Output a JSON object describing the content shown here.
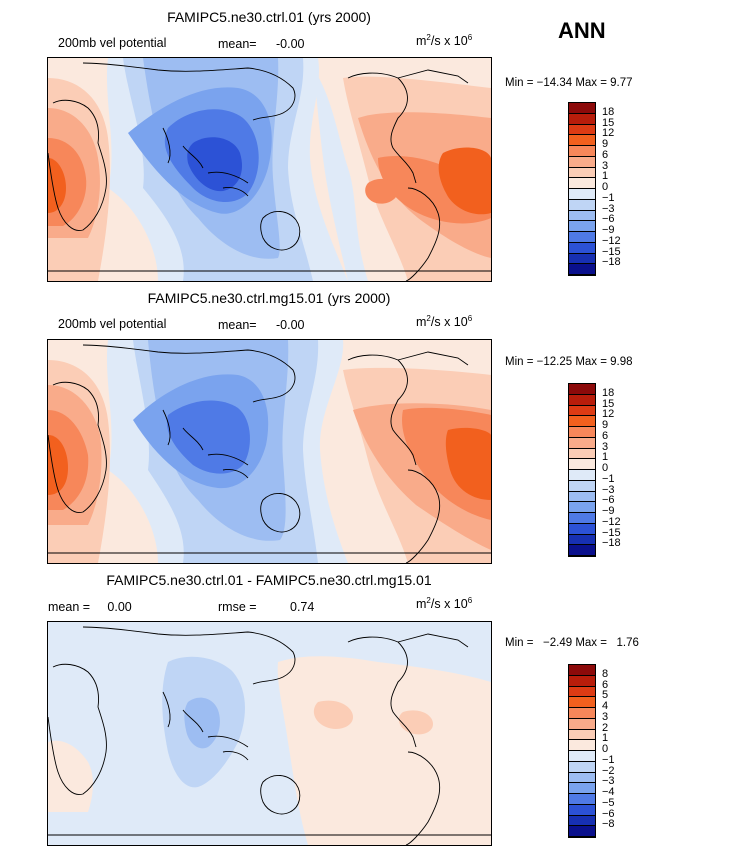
{
  "season_label": "ANN",
  "units_base": "m",
  "units_exp": "2",
  "units_mid": "/s x 10",
  "units_pow": "6",
  "panels": [
    {
      "title": "FAMIPC5.ne30.ctrl.01 (yrs 2000)",
      "left_label": "200mb vel potential",
      "mid_key": "mean=",
      "mid_val": "-0.00",
      "stats": "Min = −14.34 Max =   9.77",
      "levels": [
        "18",
        "15",
        "12",
        "9",
        "6",
        "3",
        "1",
        "0",
        "−1",
        "−3",
        "−6",
        "−9",
        "−12",
        "−15",
        "−18"
      ],
      "colors": [
        "#8c0a0a",
        "#b81d0b",
        "#dd3b14",
        "#f2601e",
        "#f7875a",
        "#f9ab8a",
        "#fbcdb6",
        "#fbe9de",
        "#dfeaf8",
        "#bfd5f5",
        "#9dbdf2",
        "#7aa3ee",
        "#4f7ae6",
        "#2c52d6",
        "#1730b2",
        "#0a108c"
      ]
    },
    {
      "title": "FAMIPC5.ne30.ctrl.mg15.01 (yrs 2000)",
      "left_label": "200mb vel potential",
      "mid_key": "mean=",
      "mid_val": "-0.00",
      "stats": "Min = −12.25 Max =   9.98",
      "levels": [
        "18",
        "15",
        "12",
        "9",
        "6",
        "3",
        "1",
        "0",
        "−1",
        "−3",
        "−6",
        "−9",
        "−12",
        "−15",
        "−18"
      ],
      "colors": [
        "#8c0a0a",
        "#b81d0b",
        "#dd3b14",
        "#f2601e",
        "#f7875a",
        "#f9ab8a",
        "#fbcdb6",
        "#fbe9de",
        "#dfeaf8",
        "#bfd5f5",
        "#9dbdf2",
        "#7aa3ee",
        "#4f7ae6",
        "#2c52d6",
        "#1730b2",
        "#0a108c"
      ]
    },
    {
      "title": "FAMIPC5.ne30.ctrl.01 - FAMIPC5.ne30.ctrl.mg15.01",
      "left_label": "mean =     0.00",
      "mid_key": "rmse =",
      "mid_val": "0.74",
      "stats": "Min =   −2.49 Max =   1.76",
      "levels": [
        "8",
        "6",
        "5",
        "4",
        "3",
        "2",
        "1",
        "0",
        "−1",
        "−2",
        "−3",
        "−4",
        "−5",
        "−6",
        "−8"
      ],
      "colors": [
        "#8c0a0a",
        "#b81d0b",
        "#dd3b14",
        "#f2601e",
        "#f7875a",
        "#f9ab8a",
        "#fbcdb6",
        "#fbe9de",
        "#dfeaf8",
        "#bfd5f5",
        "#9dbdf2",
        "#7aa3ee",
        "#4f7ae6",
        "#2c52d6",
        "#1730b2",
        "#0a108c"
      ]
    }
  ]
}
